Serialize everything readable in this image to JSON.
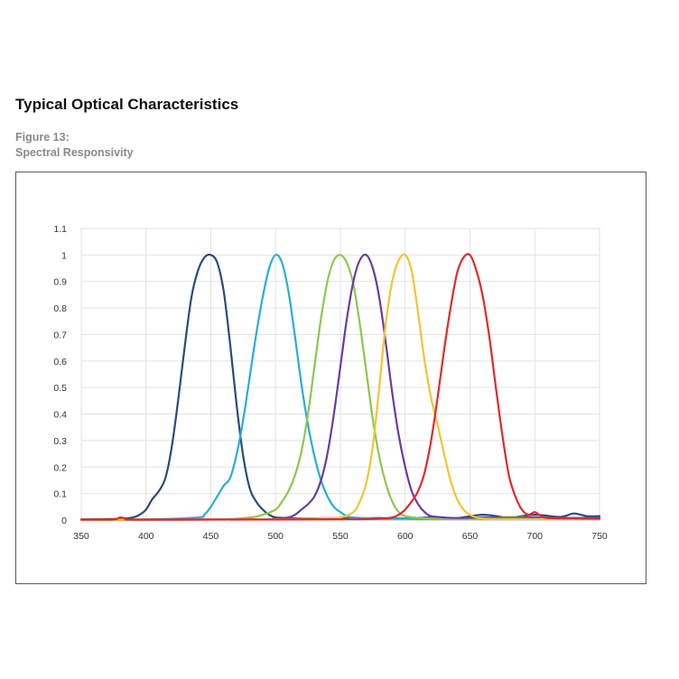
{
  "header": {
    "title": "Typical Optical Characteristics",
    "figure_number": "Figure 13:",
    "figure_caption": "Spectral Responsivity"
  },
  "chart_data": {
    "type": "line",
    "title": "",
    "xlabel": "",
    "ylabel": "",
    "xlim": [
      350,
      750
    ],
    "ylim": [
      0,
      1.1
    ],
    "xticks": [
      350,
      400,
      450,
      500,
      550,
      600,
      650,
      700,
      750
    ],
    "xtick_labels": [
      "350",
      "400",
      "450",
      "500",
      "550",
      "600",
      "650",
      "700",
      "750"
    ],
    "yticks": [
      0,
      0.1,
      0.2,
      0.3,
      0.4,
      0.5,
      0.6,
      0.7,
      0.8,
      0.9,
      1,
      1.1
    ],
    "ytick_labels": [
      "0",
      "0.1",
      "0.2",
      "0.3",
      "0.4",
      "0.5",
      "0.6",
      "0.7",
      "0.8",
      "0.9",
      "1",
      "1.1"
    ],
    "grid": true,
    "legend": "none",
    "series": [
      {
        "color": "#2b4a7a",
        "x": [
          350,
          360,
          380,
          390,
          395,
          400,
          405,
          410,
          415,
          420,
          425,
          430,
          435,
          440,
          445,
          450,
          455,
          460,
          465,
          470,
          475,
          480,
          485,
          490,
          495,
          500,
          510,
          520,
          540,
          560,
          580,
          600,
          620,
          640,
          660,
          680,
          700,
          720,
          730,
          740,
          750
        ],
        "y": [
          0.002,
          0.003,
          0.005,
          0.01,
          0.02,
          0.04,
          0.08,
          0.11,
          0.16,
          0.28,
          0.46,
          0.66,
          0.84,
          0.94,
          0.99,
          1.0,
          0.97,
          0.86,
          0.66,
          0.43,
          0.24,
          0.12,
          0.07,
          0.04,
          0.02,
          0.01,
          0.008,
          0.006,
          0.007,
          0.006,
          0.008,
          0.006,
          0.01,
          0.008,
          0.02,
          0.01,
          0.02,
          0.012,
          0.025,
          0.015,
          0.015
        ]
      },
      {
        "color": "#27afd6",
        "x": [
          350,
          400,
          440,
          445,
          450,
          455,
          460,
          465,
          470,
          475,
          480,
          485,
          490,
          495,
          500,
          505,
          510,
          515,
          520,
          525,
          530,
          535,
          540,
          545,
          550,
          555,
          560,
          580,
          600,
          620,
          640,
          660,
          680,
          700,
          720,
          750
        ],
        "y": [
          0.002,
          0.002,
          0.01,
          0.02,
          0.05,
          0.09,
          0.13,
          0.16,
          0.25,
          0.38,
          0.54,
          0.7,
          0.84,
          0.95,
          1.0,
          0.97,
          0.86,
          0.69,
          0.51,
          0.36,
          0.24,
          0.15,
          0.09,
          0.05,
          0.03,
          0.015,
          0.01,
          0.005,
          0.005,
          0.004,
          0.005,
          0.005,
          0.006,
          0.006,
          0.005,
          0.005
        ]
      },
      {
        "color": "#8cc751",
        "x": [
          350,
          450,
          480,
          490,
          500,
          505,
          510,
          515,
          520,
          525,
          530,
          535,
          540,
          545,
          550,
          555,
          560,
          565,
          570,
          575,
          580,
          585,
          590,
          595,
          600,
          610,
          620,
          640,
          660,
          680,
          700,
          720,
          750
        ],
        "y": [
          0.001,
          0.002,
          0.01,
          0.02,
          0.04,
          0.07,
          0.11,
          0.17,
          0.26,
          0.4,
          0.58,
          0.76,
          0.9,
          0.98,
          1.0,
          0.97,
          0.89,
          0.74,
          0.56,
          0.38,
          0.24,
          0.14,
          0.07,
          0.03,
          0.015,
          0.008,
          0.006,
          0.005,
          0.006,
          0.012,
          0.01,
          0.008,
          0.008
        ]
      },
      {
        "color": "#6a3ca0",
        "x": [
          350,
          480,
          500,
          510,
          515,
          520,
          525,
          530,
          535,
          540,
          545,
          550,
          555,
          560,
          565,
          570,
          575,
          580,
          585,
          590,
          595,
          600,
          605,
          610,
          615,
          620,
          630,
          640,
          660,
          680,
          700,
          720,
          750
        ],
        "y": [
          0.001,
          0.002,
          0.006,
          0.01,
          0.02,
          0.04,
          0.06,
          0.09,
          0.15,
          0.25,
          0.4,
          0.58,
          0.76,
          0.9,
          0.98,
          1.0,
          0.95,
          0.84,
          0.67,
          0.48,
          0.32,
          0.2,
          0.11,
          0.06,
          0.03,
          0.015,
          0.01,
          0.008,
          0.01,
          0.008,
          0.01,
          0.008,
          0.008
        ]
      },
      {
        "color": "#f6c330",
        "x": [
          350,
          500,
          540,
          550,
          560,
          565,
          570,
          575,
          580,
          585,
          590,
          595,
          600,
          605,
          610,
          615,
          620,
          625,
          630,
          635,
          640,
          645,
          650,
          655,
          660,
          670,
          690,
          710,
          750
        ],
        "y": [
          0.001,
          0.003,
          0.008,
          0.01,
          0.03,
          0.07,
          0.14,
          0.28,
          0.5,
          0.74,
          0.9,
          0.98,
          1.0,
          0.94,
          0.78,
          0.6,
          0.46,
          0.36,
          0.25,
          0.15,
          0.08,
          0.04,
          0.02,
          0.01,
          0.006,
          0.004,
          0.004,
          0.004,
          0.004
        ]
      },
      {
        "color": "#e02a2a",
        "x": [
          350,
          375,
          380,
          385,
          390,
          450,
          550,
          580,
          590,
          595,
          600,
          605,
          610,
          615,
          620,
          625,
          630,
          635,
          640,
          645,
          650,
          655,
          660,
          665,
          670,
          675,
          680,
          685,
          690,
          695,
          700,
          705,
          710,
          730,
          750
        ],
        "y": [
          0.002,
          0.003,
          0.01,
          0.005,
          0.002,
          0.002,
          0.003,
          0.005,
          0.01,
          0.02,
          0.04,
          0.07,
          0.11,
          0.18,
          0.3,
          0.46,
          0.64,
          0.8,
          0.93,
          0.99,
          1.0,
          0.94,
          0.84,
          0.69,
          0.5,
          0.32,
          0.17,
          0.09,
          0.04,
          0.02,
          0.03,
          0.015,
          0.008,
          0.006,
          0.005
        ]
      }
    ]
  }
}
